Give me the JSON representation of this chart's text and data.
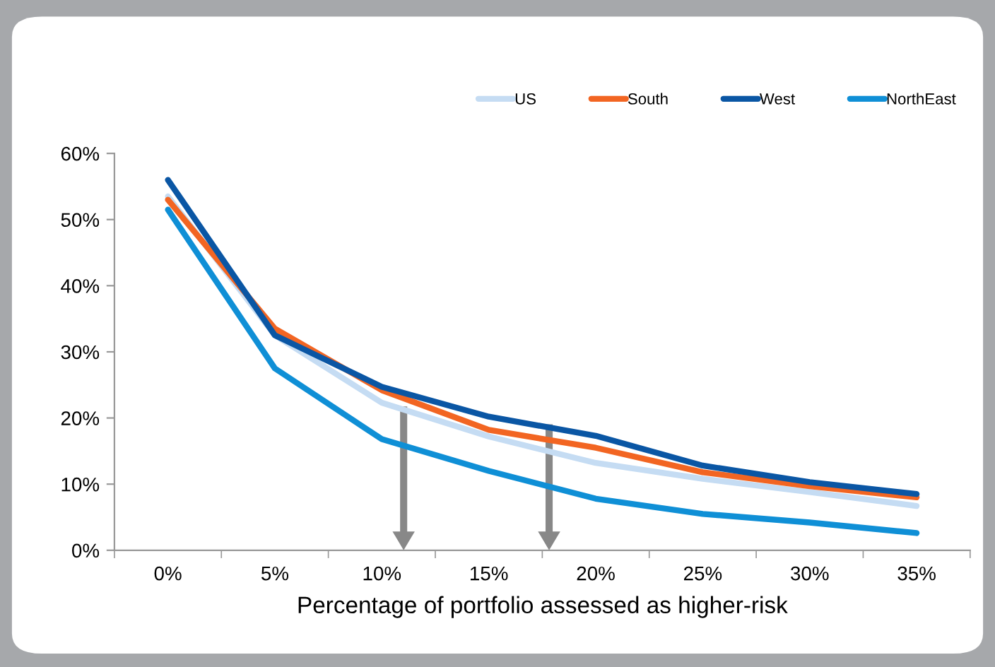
{
  "chart_data": {
    "type": "line",
    "xlabel": "Percentage of portfolio assessed as higher-risk",
    "categories": [
      "0%",
      "5%",
      "10%",
      "15%",
      "20%",
      "25%",
      "30%",
      "35%"
    ],
    "series": [
      {
        "name": "US",
        "color": "#c5dcf3",
        "values": [
          53.5,
          32.5,
          22.3,
          17.2,
          13.2,
          10.8,
          8.8,
          6.7
        ]
      },
      {
        "name": "South",
        "color": "#f26522",
        "values": [
          53,
          33.5,
          24.2,
          18.2,
          15.5,
          11.8,
          9.7,
          8
        ]
      },
      {
        "name": "West",
        "color": "#0a56a4",
        "values": [
          56,
          32.5,
          24.7,
          20.2,
          17.3,
          12.8,
          10.3,
          8.5
        ]
      },
      {
        "name": "NorthEast",
        "color": "#0f8fd6",
        "values": [
          51.5,
          27.5,
          16.8,
          12,
          7.8,
          5.5,
          4.2,
          2.6
        ]
      }
    ],
    "ylim": [
      0,
      60
    ],
    "yticks": [
      {
        "value": 0,
        "label": "0%"
      },
      {
        "value": 10,
        "label": "10%"
      },
      {
        "value": 20,
        "label": "20%"
      },
      {
        "value": 30,
        "label": "30%"
      },
      {
        "value": 40,
        "label": "40%"
      },
      {
        "value": 50,
        "label": "50%"
      },
      {
        "value": 60,
        "label": "60%"
      }
    ],
    "grid": false,
    "legend": "top right",
    "marker": "none",
    "line_style": "solid"
  }
}
